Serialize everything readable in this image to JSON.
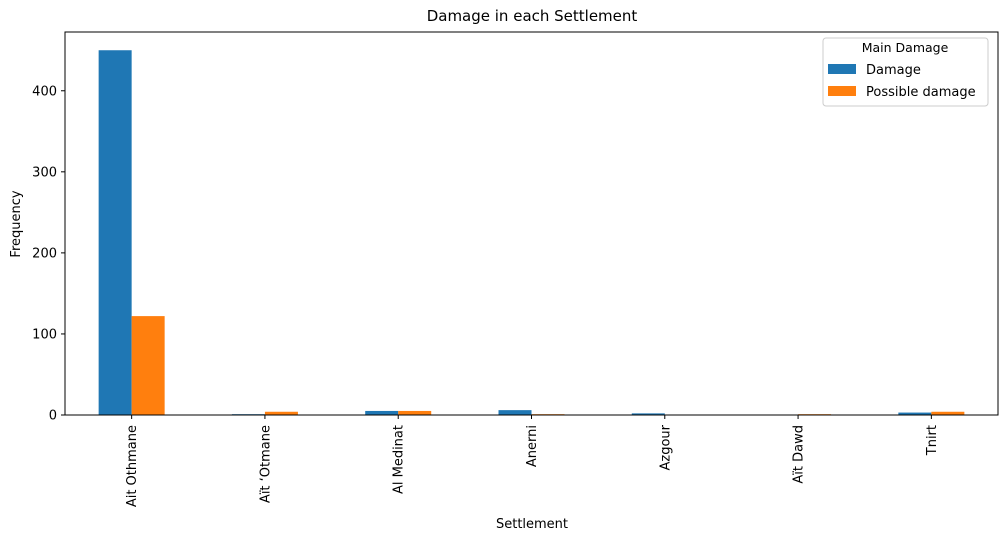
{
  "chart_data": {
    "type": "bar",
    "title": "Damage in each Settlement",
    "xlabel": "Settlement",
    "ylabel": "Frequency",
    "categories": [
      "Ait Othmane",
      "Aït ‘Otmane",
      "Al Medinat",
      "Anerni",
      "Azgour",
      "Aït Dawd",
      "Tnirt"
    ],
    "series": [
      {
        "name": "Damage",
        "color": "#1f77b4",
        "values": [
          450,
          1,
          5,
          6,
          2,
          0,
          3
        ]
      },
      {
        "name": "Possible damage",
        "color": "#ff7f0e",
        "values": [
          122,
          4,
          5,
          1,
          0,
          1,
          4
        ]
      }
    ],
    "ylim": [
      0,
      472.5
    ],
    "yticks": [
      0,
      100,
      200,
      300,
      400
    ],
    "legend": {
      "title": "Main Damage",
      "position": "top-right"
    },
    "grid": false
  }
}
